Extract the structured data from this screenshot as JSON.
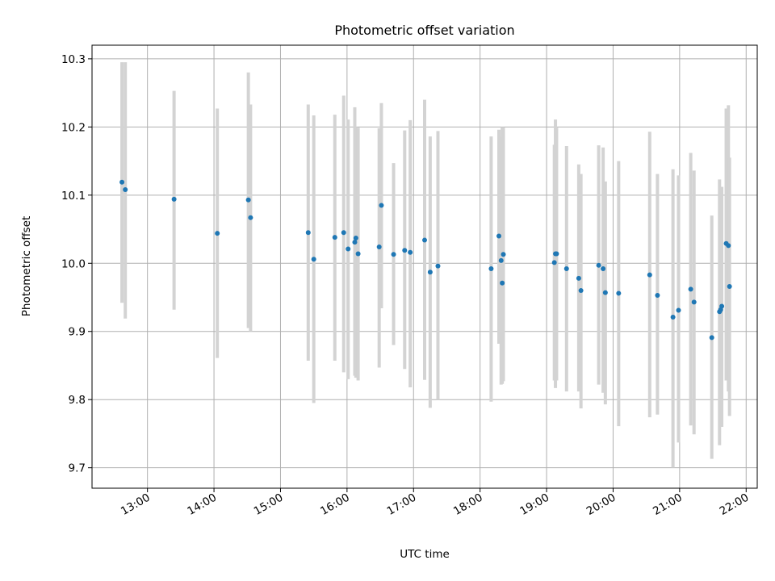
{
  "chart_data": {
    "type": "scatter",
    "title": "Photometric offset variation",
    "xlabel": "UTC time",
    "ylabel": "Photometric offset",
    "xlim": [
      "12:10",
      "22:10"
    ],
    "ylim": [
      9.67,
      10.32
    ],
    "x_ticks": [
      "13:00",
      "14:00",
      "15:00",
      "16:00",
      "17:00",
      "18:00",
      "19:00",
      "20:00",
      "21:00",
      "22:00"
    ],
    "y_ticks": [
      "9.7",
      "9.8",
      "9.9",
      "10.0",
      "10.1",
      "10.2",
      "10.3"
    ],
    "grid": true,
    "colors": {
      "points": "#1f77b4",
      "errorbars": "#d3d3d3"
    },
    "series": [
      {
        "x": [
          "12:37",
          "12:40",
          "13:24",
          "14:03",
          "14:31",
          "14:33",
          "15:25",
          "15:30",
          "15:49",
          "15:57",
          "16:01",
          "16:07",
          "16:08",
          "16:10",
          "16:29",
          "16:31",
          "16:42",
          "16:52",
          "16:57",
          "17:10",
          "17:15",
          "17:22",
          "18:10",
          "18:17",
          "18:19",
          "18:20",
          "18:21",
          "19:07",
          "19:08",
          "19:09",
          "19:18",
          "19:29",
          "19:31",
          "19:47",
          "19:51",
          "19:53",
          "20:05",
          "20:33",
          "20:40",
          "20:54",
          "20:59",
          "21:10",
          "21:13",
          "21:29",
          "21:36",
          "21:37",
          "21:38",
          "21:42",
          "21:44",
          "21:45"
        ],
        "y": [
          10.119,
          10.108,
          10.094,
          10.044,
          10.093,
          10.067,
          10.045,
          10.006,
          10.038,
          10.045,
          10.021,
          10.031,
          10.037,
          10.014,
          10.024,
          10.085,
          10.013,
          10.019,
          10.016,
          10.034,
          9.987,
          9.996,
          9.992,
          10.04,
          10.004,
          9.971,
          10.013,
          10.001,
          10.014,
          10.014,
          9.992,
          9.978,
          9.96,
          9.997,
          9.992,
          9.957,
          9.956,
          9.983,
          9.953,
          9.921,
          9.931,
          9.962,
          9.943,
          9.891,
          9.929,
          9.932,
          9.937,
          10.029,
          10.026,
          9.966
        ],
        "yerr_low": [
          9.942,
          9.919,
          9.932,
          9.861,
          9.905,
          9.9,
          9.857,
          9.795,
          9.857,
          9.84,
          9.83,
          9.835,
          9.832,
          9.828,
          9.847,
          9.934,
          9.88,
          9.845,
          9.818,
          9.829,
          9.788,
          9.8,
          9.797,
          9.882,
          9.822,
          9.823,
          9.827,
          9.828,
          9.817,
          9.828,
          9.812,
          9.812,
          9.787,
          9.822,
          9.81,
          9.793,
          9.761,
          9.774,
          9.778,
          9.7,
          9.737,
          9.762,
          9.749,
          9.713,
          9.733,
          9.76,
          9.76,
          9.828,
          9.812,
          9.776
        ],
        "yerr_high": [
          10.295,
          10.295,
          10.253,
          10.227,
          10.28,
          10.233,
          10.233,
          10.217,
          10.218,
          10.246,
          10.211,
          10.229,
          10.2,
          10.199,
          10.198,
          10.235,
          10.147,
          10.195,
          10.21,
          10.24,
          10.186,
          10.194,
          10.186,
          10.196,
          10.186,
          10.2,
          10.199,
          10.174,
          10.211,
          10.199,
          10.172,
          10.145,
          10.131,
          10.173,
          10.17,
          10.12,
          10.15,
          10.193,
          10.131,
          10.138,
          10.129,
          10.162,
          10.136,
          10.07,
          10.123,
          10.112,
          10.112,
          10.227,
          10.232,
          10.155
        ]
      }
    ]
  }
}
